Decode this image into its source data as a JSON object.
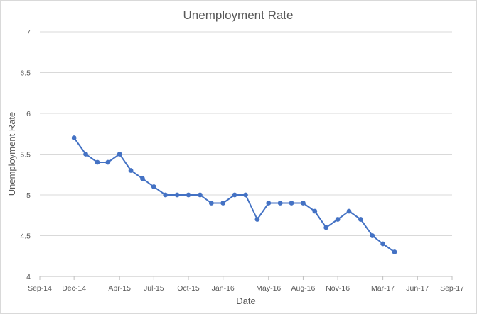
{
  "chart_data": {
    "type": "line",
    "title": "Unemployment Rate",
    "xlabel": "Date",
    "ylabel": "Unemployment Rate",
    "ylim": [
      4,
      7
    ],
    "yticks": [
      "4",
      "4.5",
      "5",
      "5.5",
      "6",
      "6.5",
      "7"
    ],
    "xlim": [
      "2014-09-01",
      "2017-09-01"
    ],
    "xticks": [
      {
        "date": "2014-09-01",
        "label": "Sep-14"
      },
      {
        "date": "2014-12-01",
        "label": "Dec-14"
      },
      {
        "date": "2015-04-01",
        "label": "Apr-15"
      },
      {
        "date": "2015-07-01",
        "label": "Jul-15"
      },
      {
        "date": "2015-10-01",
        "label": "Oct-15"
      },
      {
        "date": "2016-01-01",
        "label": "Jan-16"
      },
      {
        "date": "2016-05-01",
        "label": "May-16"
      },
      {
        "date": "2016-08-01",
        "label": "Aug-16"
      },
      {
        "date": "2016-11-01",
        "label": "Nov-16"
      },
      {
        "date": "2017-03-01",
        "label": "Mar-17"
      },
      {
        "date": "2017-06-01",
        "label": "Jun-17"
      },
      {
        "date": "2017-09-01",
        "label": "Sep-17"
      }
    ],
    "grid": true,
    "legend": "none",
    "series": [
      {
        "color": "#4472c4",
        "points": [
          {
            "x": "2014-12-01",
            "y": 5.7
          },
          {
            "x": "2015-01-01",
            "y": 5.5
          },
          {
            "x": "2015-02-01",
            "y": 5.4
          },
          {
            "x": "2015-03-01",
            "y": 5.4
          },
          {
            "x": "2015-04-01",
            "y": 5.5
          },
          {
            "x": "2015-05-01",
            "y": 5.3
          },
          {
            "x": "2015-06-01",
            "y": 5.2
          },
          {
            "x": "2015-07-01",
            "y": 5.1
          },
          {
            "x": "2015-08-01",
            "y": 5.0
          },
          {
            "x": "2015-09-01",
            "y": 5.0
          },
          {
            "x": "2015-10-01",
            "y": 5.0
          },
          {
            "x": "2015-11-01",
            "y": 5.0
          },
          {
            "x": "2015-12-01",
            "y": 4.9
          },
          {
            "x": "2016-01-01",
            "y": 4.9
          },
          {
            "x": "2016-02-01",
            "y": 5.0
          },
          {
            "x": "2016-03-01",
            "y": 5.0
          },
          {
            "x": "2016-04-01",
            "y": 4.7
          },
          {
            "x": "2016-05-01",
            "y": 4.9
          },
          {
            "x": "2016-06-01",
            "y": 4.9
          },
          {
            "x": "2016-07-01",
            "y": 4.9
          },
          {
            "x": "2016-08-01",
            "y": 4.9
          },
          {
            "x": "2016-09-01",
            "y": 4.8
          },
          {
            "x": "2016-10-01",
            "y": 4.6
          },
          {
            "x": "2016-11-01",
            "y": 4.7
          },
          {
            "x": "2016-12-01",
            "y": 4.8
          },
          {
            "x": "2017-01-01",
            "y": 4.7
          },
          {
            "x": "2017-02-01",
            "y": 4.5
          },
          {
            "x": "2017-03-01",
            "y": 4.4
          },
          {
            "x": "2017-04-01",
            "y": 4.3
          }
        ]
      }
    ],
    "colors": {
      "gridline": "#d9d9d9",
      "axis": "#bfbfbf",
      "text": "#595959"
    }
  }
}
